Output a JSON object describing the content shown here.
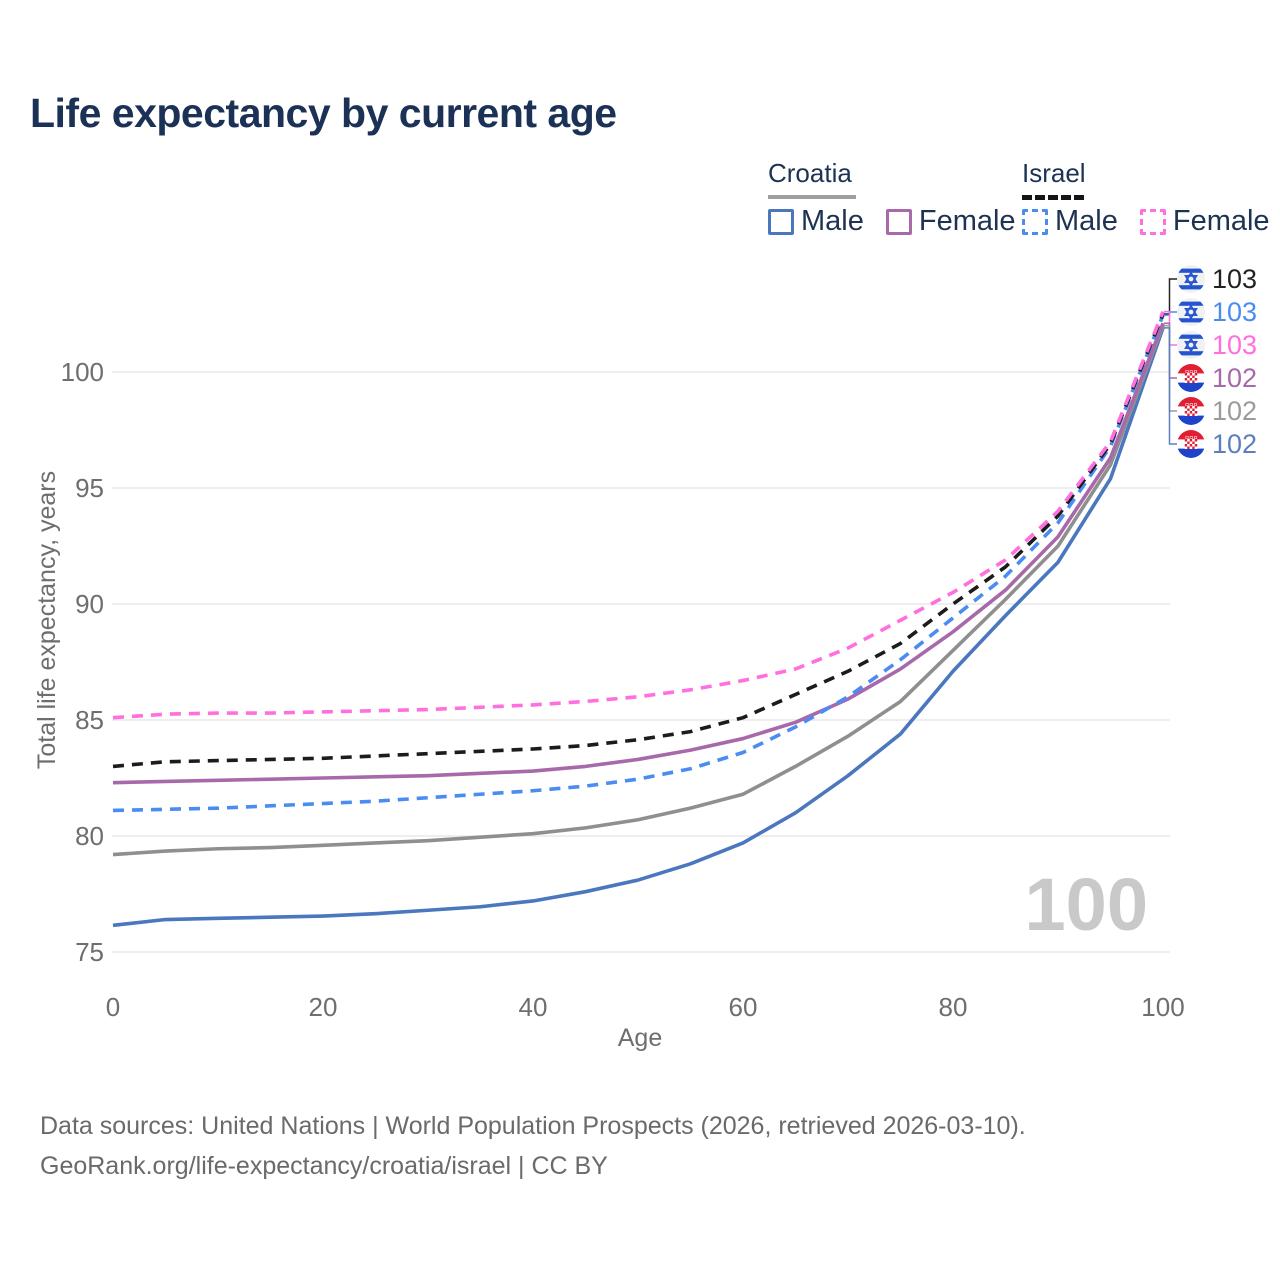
{
  "title": "Life expectancy by current age",
  "legend": {
    "croatia": {
      "label": "Croatia",
      "male_label": "Male",
      "female_label": "Female"
    },
    "israel": {
      "label": "Israel",
      "male_label": "Male",
      "female_label": "Female"
    }
  },
  "watermark": "100",
  "footer": {
    "line1": "Data sources: United Nations | World Population Prospects (2026, retrieved 2026-03-10).",
    "line2": "GeoRank.org/life-expectancy/croatia/israel | CC BY"
  },
  "colors": {
    "title_text": "#1b3155",
    "legend_text": "#1e3252",
    "axis_text": "#6e6e6e",
    "grid": "#e9e9e9",
    "watermark": "#c9c9c9",
    "footer_text": "#6a6a6a",
    "croatia_underline": "#9e9e9e",
    "israel_underline": "#151515"
  },
  "flags": {
    "israel": {
      "bg": "#f1f1f1",
      "blue": "#2454cf"
    },
    "croatia": {
      "red": "#e01f35",
      "white": "#ffffff",
      "blue": "#1c43c9"
    }
  },
  "chart_data": {
    "type": "line",
    "title": "Life expectancy by current age",
    "xlabel": "Age",
    "ylabel": "Total life expectancy, years",
    "x_ticks": [
      0,
      20,
      40,
      60,
      80,
      100
    ],
    "y_ticks": [
      75,
      80,
      85,
      90,
      95,
      100
    ],
    "xlim": [
      0,
      100
    ],
    "ylim": [
      74.7,
      103.6
    ],
    "grid": "horizontal-only",
    "legend_position": "top-right",
    "x": [
      0,
      5,
      10,
      15,
      20,
      25,
      30,
      35,
      40,
      45,
      50,
      55,
      60,
      65,
      70,
      75,
      80,
      85,
      90,
      95,
      100
    ],
    "series": [
      {
        "key": "croatia_male",
        "name": "Croatia Male",
        "country": "Croatia",
        "sex": "Male",
        "style": "solid",
        "color": "#4a77bd",
        "label_color": "#5b7fc0",
        "flag": "croatia",
        "end_value_label": "102",
        "values": [
          76.15,
          76.4,
          76.45,
          76.5,
          76.55,
          76.65,
          76.8,
          76.95,
          77.2,
          77.6,
          78.1,
          78.8,
          79.7,
          81.0,
          82.6,
          84.4,
          87.1,
          89.5,
          91.8,
          95.4,
          101.9
        ]
      },
      {
        "key": "croatia_total",
        "name": "Croatia (both sexes)",
        "country": "Croatia",
        "sex": "Both",
        "style": "solid",
        "color": "#8f8f8f",
        "label_color": "#9b9b9b",
        "flag": "croatia",
        "end_value_label": "102",
        "values": [
          79.2,
          79.35,
          79.45,
          79.5,
          79.6,
          79.7,
          79.8,
          79.95,
          80.1,
          80.35,
          80.7,
          81.2,
          81.8,
          83.0,
          84.3,
          85.8,
          88.0,
          90.2,
          92.5,
          96.0,
          102.0
        ]
      },
      {
        "key": "croatia_female",
        "name": "Croatia Female",
        "country": "Croatia",
        "sex": "Female",
        "style": "solid",
        "color": "#a869ab",
        "label_color": "#a869ab",
        "flag": "croatia",
        "end_value_label": "102",
        "values": [
          82.3,
          82.35,
          82.4,
          82.45,
          82.5,
          82.55,
          82.6,
          82.7,
          82.8,
          83.0,
          83.3,
          83.7,
          84.2,
          84.9,
          85.9,
          87.2,
          88.8,
          90.6,
          92.9,
          96.3,
          102.1
        ]
      },
      {
        "key": "israel_male",
        "name": "Israel Male",
        "country": "Israel",
        "sex": "Male",
        "style": "dashed",
        "color": "#4a8cf2",
        "label_color": "#4a8cf2",
        "flag": "israel",
        "end_value_label": "103",
        "values": [
          81.1,
          81.15,
          81.2,
          81.3,
          81.4,
          81.5,
          81.65,
          81.8,
          81.95,
          82.15,
          82.45,
          82.9,
          83.6,
          84.7,
          86.0,
          87.6,
          89.4,
          91.2,
          93.5,
          96.8,
          102.45
        ]
      },
      {
        "key": "israel_total",
        "name": "Israel (both sexes)",
        "country": "Israel",
        "sex": "Both",
        "style": "dashed",
        "color": "#1c1c1c",
        "label_color": "#222222",
        "flag": "israel",
        "end_value_label": "103",
        "values": [
          83.0,
          83.2,
          83.25,
          83.3,
          83.35,
          83.45,
          83.55,
          83.65,
          83.75,
          83.9,
          84.15,
          84.5,
          85.1,
          86.1,
          87.1,
          88.3,
          90.0,
          91.6,
          93.8,
          96.9,
          102.5
        ]
      },
      {
        "key": "israel_female",
        "name": "Israel Female",
        "country": "Israel",
        "sex": "Female",
        "style": "dashed",
        "color": "#ff6fe0",
        "label_color": "#ff6fe0",
        "flag": "israel",
        "end_value_label": "103",
        "values": [
          85.1,
          85.25,
          85.3,
          85.3,
          85.35,
          85.4,
          85.45,
          85.55,
          85.65,
          85.8,
          86.0,
          86.3,
          86.7,
          87.2,
          88.1,
          89.3,
          90.5,
          91.9,
          94.0,
          97.0,
          102.6
        ]
      }
    ],
    "end_labels_top_to_bottom": [
      "israel_total",
      "israel_male",
      "israel_female",
      "croatia_female",
      "croatia_total",
      "croatia_male"
    ]
  }
}
